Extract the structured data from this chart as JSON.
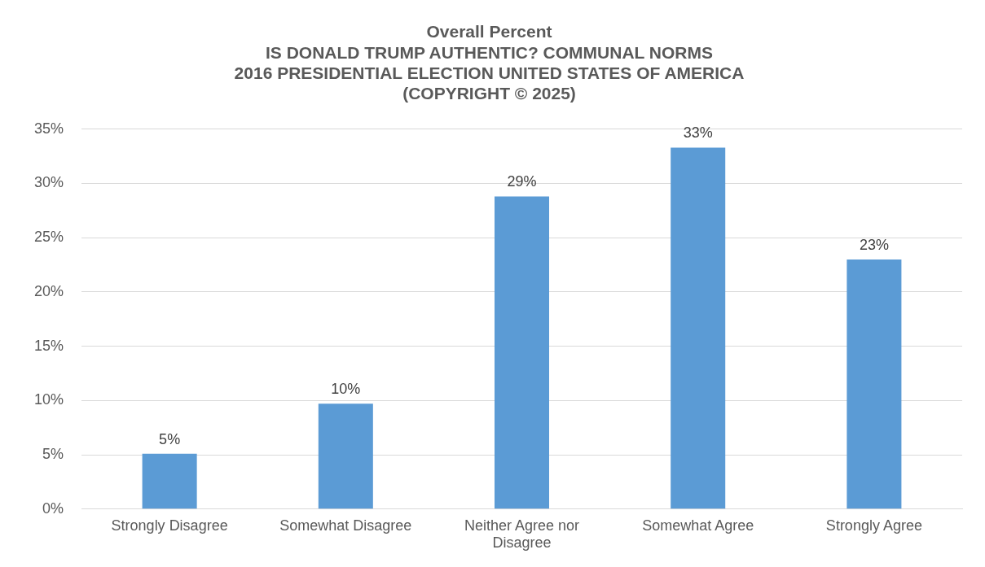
{
  "chart_data": {
    "type": "bar",
    "title": "Overall Percent\nIS DONALD TRUMP AUTHENTIC? COMMUNAL NORMS\n2016 PRESIDENTIAL ELECTION UNITED STATES OF AMERICA\n(COPYRIGHT © 2025)",
    "categories": [
      "Strongly Disagree",
      "Somewhat Disagree",
      "Neither Agree nor Disagree",
      "Somewhat Agree",
      "Strongly Agree"
    ],
    "values": [
      5.1,
      9.7,
      28.8,
      33.3,
      23.0
    ],
    "value_labels": [
      "5%",
      "10%",
      "29%",
      "33%",
      "23%"
    ],
    "color": "#5b9bd5",
    "ylim": [
      0,
      35
    ],
    "yticks": [
      {
        "value": 0,
        "label": "0%"
      },
      {
        "value": 5,
        "label": "5%"
      },
      {
        "value": 10,
        "label": "10%"
      },
      {
        "value": 15,
        "label": "15%"
      },
      {
        "value": 20,
        "label": "20%"
      },
      {
        "value": 25,
        "label": "25%"
      },
      {
        "value": 30,
        "label": "30%"
      },
      {
        "value": 35,
        "label": "35%"
      }
    ],
    "grid": "y",
    "legend": false
  }
}
